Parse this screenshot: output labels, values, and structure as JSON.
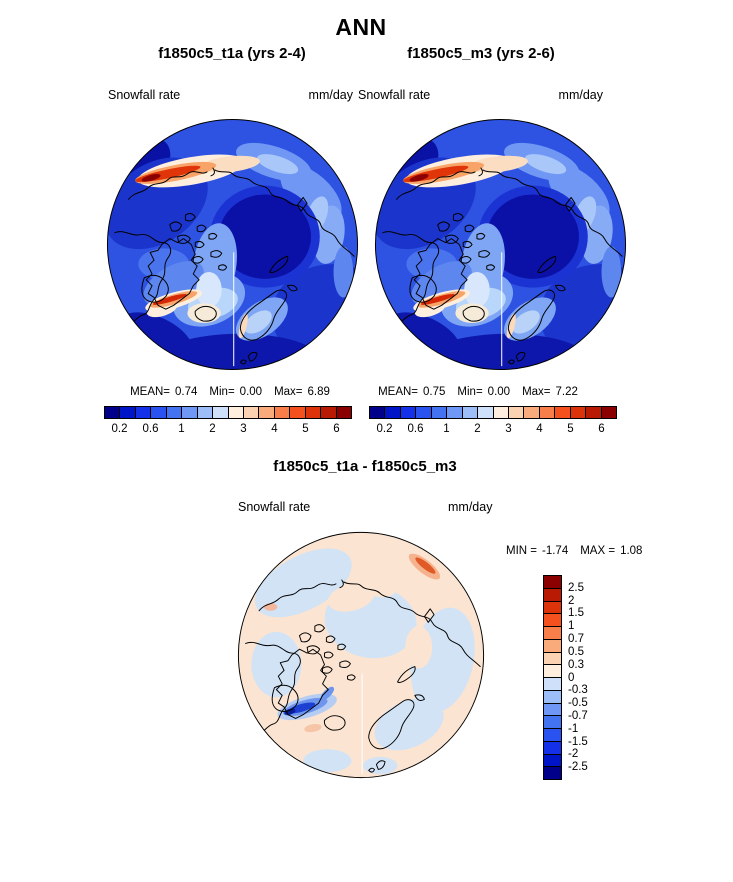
{
  "title": "ANN",
  "panel_left": {
    "subtitle": "f1850c5_t1a (yrs 2-4)",
    "field_label": "Snowfall rate",
    "units": "mm/day",
    "stats": {
      "mean_label": "MEAN=",
      "mean": "0.74",
      "min_label": "Min=",
      "min": "0.00",
      "max_label": "Max=",
      "max": "6.89"
    }
  },
  "panel_right": {
    "subtitle": "f1850c5_m3 (yrs 2-6)",
    "field_label": "Snowfall rate",
    "units": "mm/day",
    "stats": {
      "mean_label": "MEAN=",
      "mean": "0.75",
      "min_label": "Min=",
      "min": "0.00",
      "max_label": "Max=",
      "max": "7.22"
    }
  },
  "panel_diff": {
    "subtitle": "f1850c5_t1a - f1850c5_m3",
    "field_label": "Snowfall rate",
    "units": "mm/day",
    "stats": {
      "min_label": "MIN =",
      "min": "-1.74",
      "max_label": "MAX =",
      "max": "1.08"
    }
  },
  "colorbar_top": {
    "colors": [
      "#00008b",
      "#0014c8",
      "#1430e8",
      "#2a52f0",
      "#4473f2",
      "#6f97f5",
      "#9dbdf8",
      "#cfe0fb",
      "#fdeedd",
      "#fbd3b3",
      "#f9ab7c",
      "#f87f4a",
      "#f4511f",
      "#dd330b",
      "#b81a04",
      "#8b0000"
    ],
    "tick_labels": [
      "0.2",
      "0.6",
      "1",
      "2",
      "3",
      "4",
      "5",
      "6"
    ],
    "tick_boundaries": [
      1,
      3,
      5,
      7,
      9,
      11,
      13,
      15
    ]
  },
  "colorbar_diff": {
    "colors": [
      "#8b0000",
      "#b81a04",
      "#dd330b",
      "#f4511f",
      "#f87f4a",
      "#f9ab7c",
      "#fbd3b3",
      "#fdeedd",
      "#cfe0fb",
      "#9dbdf8",
      "#6f97f5",
      "#4473f2",
      "#2a52f0",
      "#1430e8",
      "#0014c8",
      "#00008b"
    ],
    "tick_labels": [
      "2.5",
      "2",
      "1.5",
      "1",
      "0.7",
      "0.5",
      "0.3",
      "0",
      "-0.3",
      "-0.5",
      "-0.7",
      "-1",
      "-1.5",
      "-2",
      "-2.5"
    ]
  },
  "chart_data": [
    {
      "type": "heatmap",
      "title": "f1850c5_t1a (yrs 2-4)",
      "variable": "Snowfall rate",
      "units": "mm/day",
      "projection": "north-polar-stereographic",
      "season": "ANN",
      "mean": 0.74,
      "min": 0.0,
      "max": 6.89,
      "contour_levels": [
        0.2,
        0.4,
        0.6,
        0.8,
        1,
        1.5,
        2,
        2.5,
        3,
        3.5,
        4,
        4.5,
        5,
        5.5,
        6
      ],
      "palette": "blue-to-red 16 levels",
      "legend_position": "bottom"
    },
    {
      "type": "heatmap",
      "title": "f1850c5_m3 (yrs 2-6)",
      "variable": "Snowfall rate",
      "units": "mm/day",
      "projection": "north-polar-stereographic",
      "season": "ANN",
      "mean": 0.75,
      "min": 0.0,
      "max": 7.22,
      "contour_levels": [
        0.2,
        0.4,
        0.6,
        0.8,
        1,
        1.5,
        2,
        2.5,
        3,
        3.5,
        4,
        4.5,
        5,
        5.5,
        6
      ],
      "palette": "blue-to-red 16 levels",
      "legend_position": "bottom"
    },
    {
      "type": "heatmap",
      "title": "f1850c5_t1a - f1850c5_m3",
      "variable": "Snowfall rate difference",
      "units": "mm/day",
      "projection": "north-polar-stereographic",
      "season": "ANN",
      "min": -1.74,
      "max": 1.08,
      "contour_levels": [
        -2.5,
        -2,
        -1.5,
        -1,
        -0.7,
        -0.5,
        -0.3,
        0,
        0.3,
        0.5,
        0.7,
        1,
        1.5,
        2,
        2.5
      ],
      "palette": "red-to-blue 16 levels",
      "legend_position": "right"
    }
  ]
}
